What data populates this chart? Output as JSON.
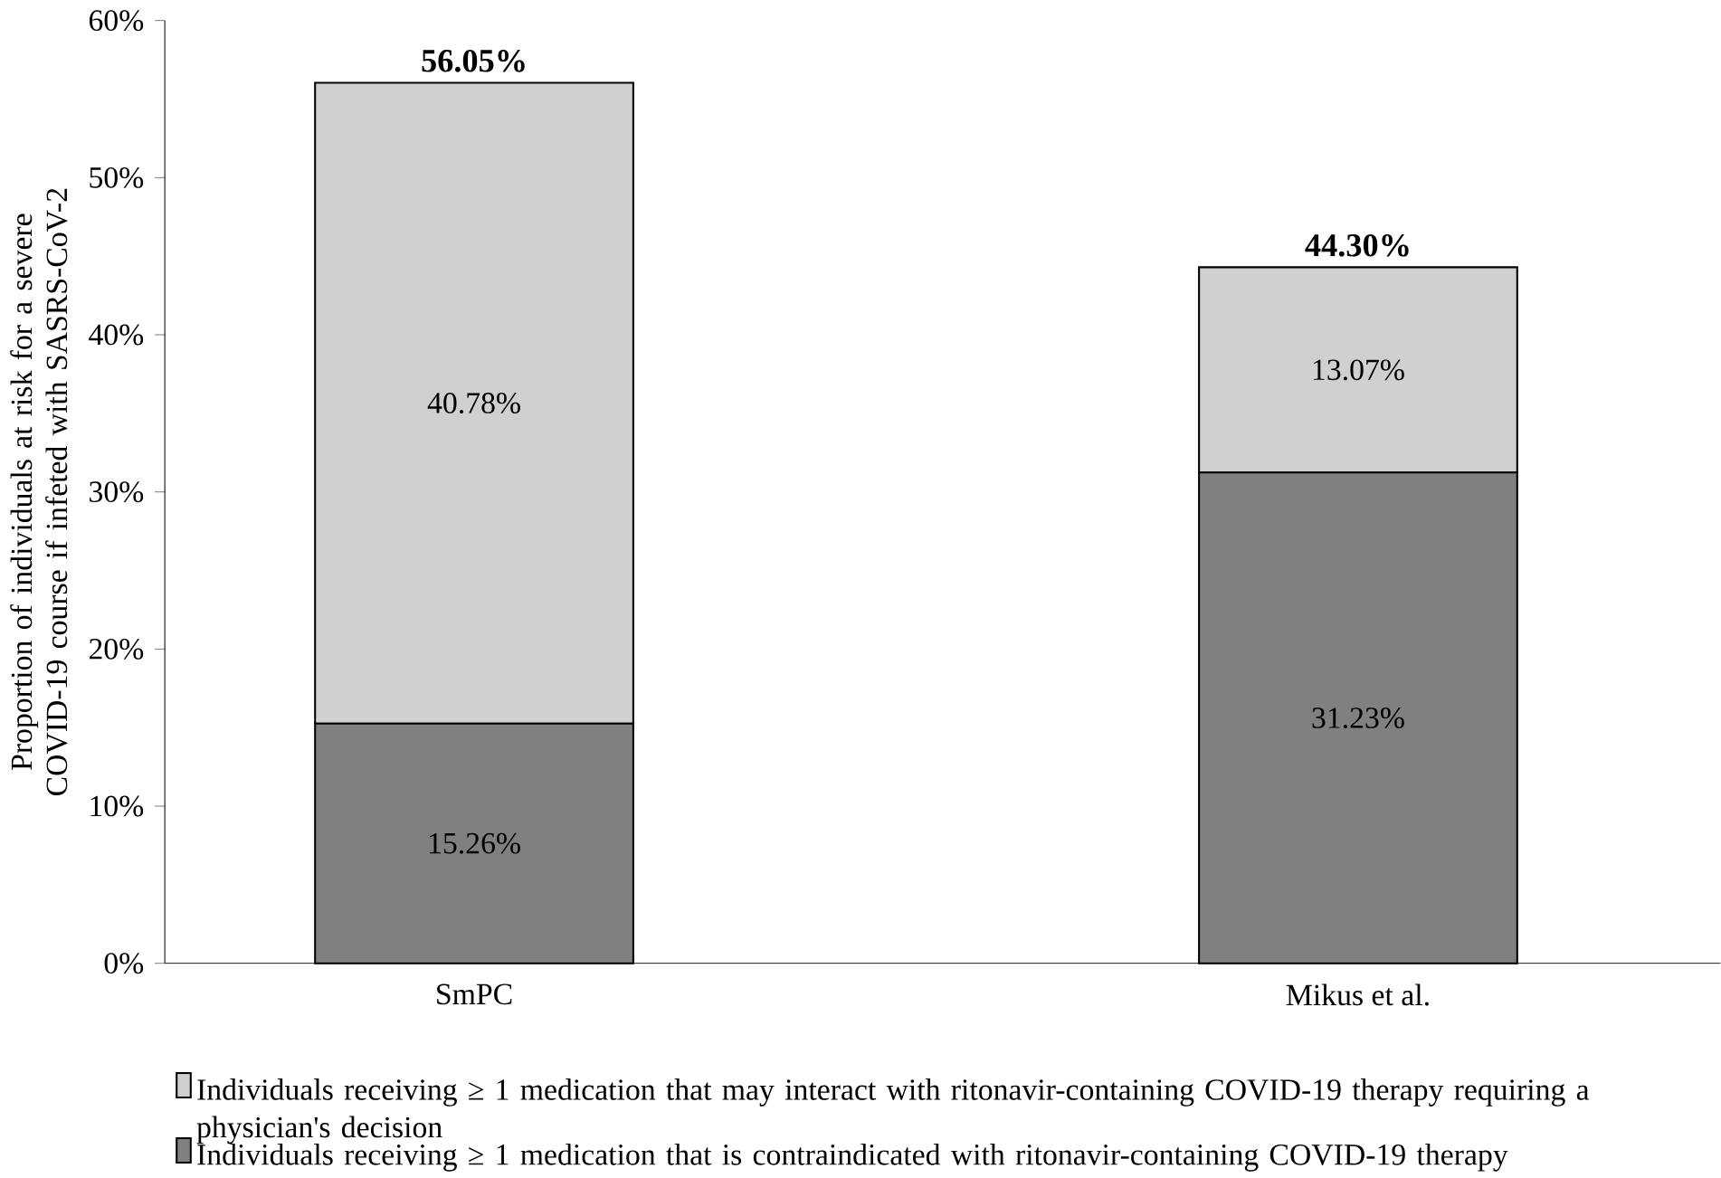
{
  "chart_data": {
    "type": "bar",
    "stacked": true,
    "ylabel": "Proportion of individuals at risk for a severe COVID-19 course if infeted with SASRS-CoV-2",
    "categories": [
      "SmPC",
      "Mikus et al."
    ],
    "series": [
      {
        "name": "Individuals receiving ≥ 1 medication that is contraindicated with ritonavir-containing COVID-19 therapy",
        "color": "#808080",
        "values": [
          15.26,
          31.23
        ],
        "value_labels": [
          "15.26%",
          "31.23%"
        ]
      },
      {
        "name": "Individuals receiving ≥ 1 medication that may interact with ritonavir-containing COVID-19 therapy requiring a physician's decision",
        "color": "#d0d0d0",
        "values": [
          40.78,
          13.07
        ],
        "value_labels": [
          "40.78%",
          "13.07%"
        ]
      }
    ],
    "totals": [
      "56.05%",
      "44.30%"
    ],
    "ylim": [
      0,
      60
    ],
    "yticks": [
      {
        "value": 0,
        "label": "0%"
      },
      {
        "value": 10,
        "label": "10%"
      },
      {
        "value": 20,
        "label": "20%"
      },
      {
        "value": 30,
        "label": "30%"
      },
      {
        "value": 40,
        "label": "40%"
      },
      {
        "value": 50,
        "label": "50%"
      },
      {
        "value": 60,
        "label": "60%"
      }
    ],
    "grid": false,
    "legend": "bottom"
  }
}
